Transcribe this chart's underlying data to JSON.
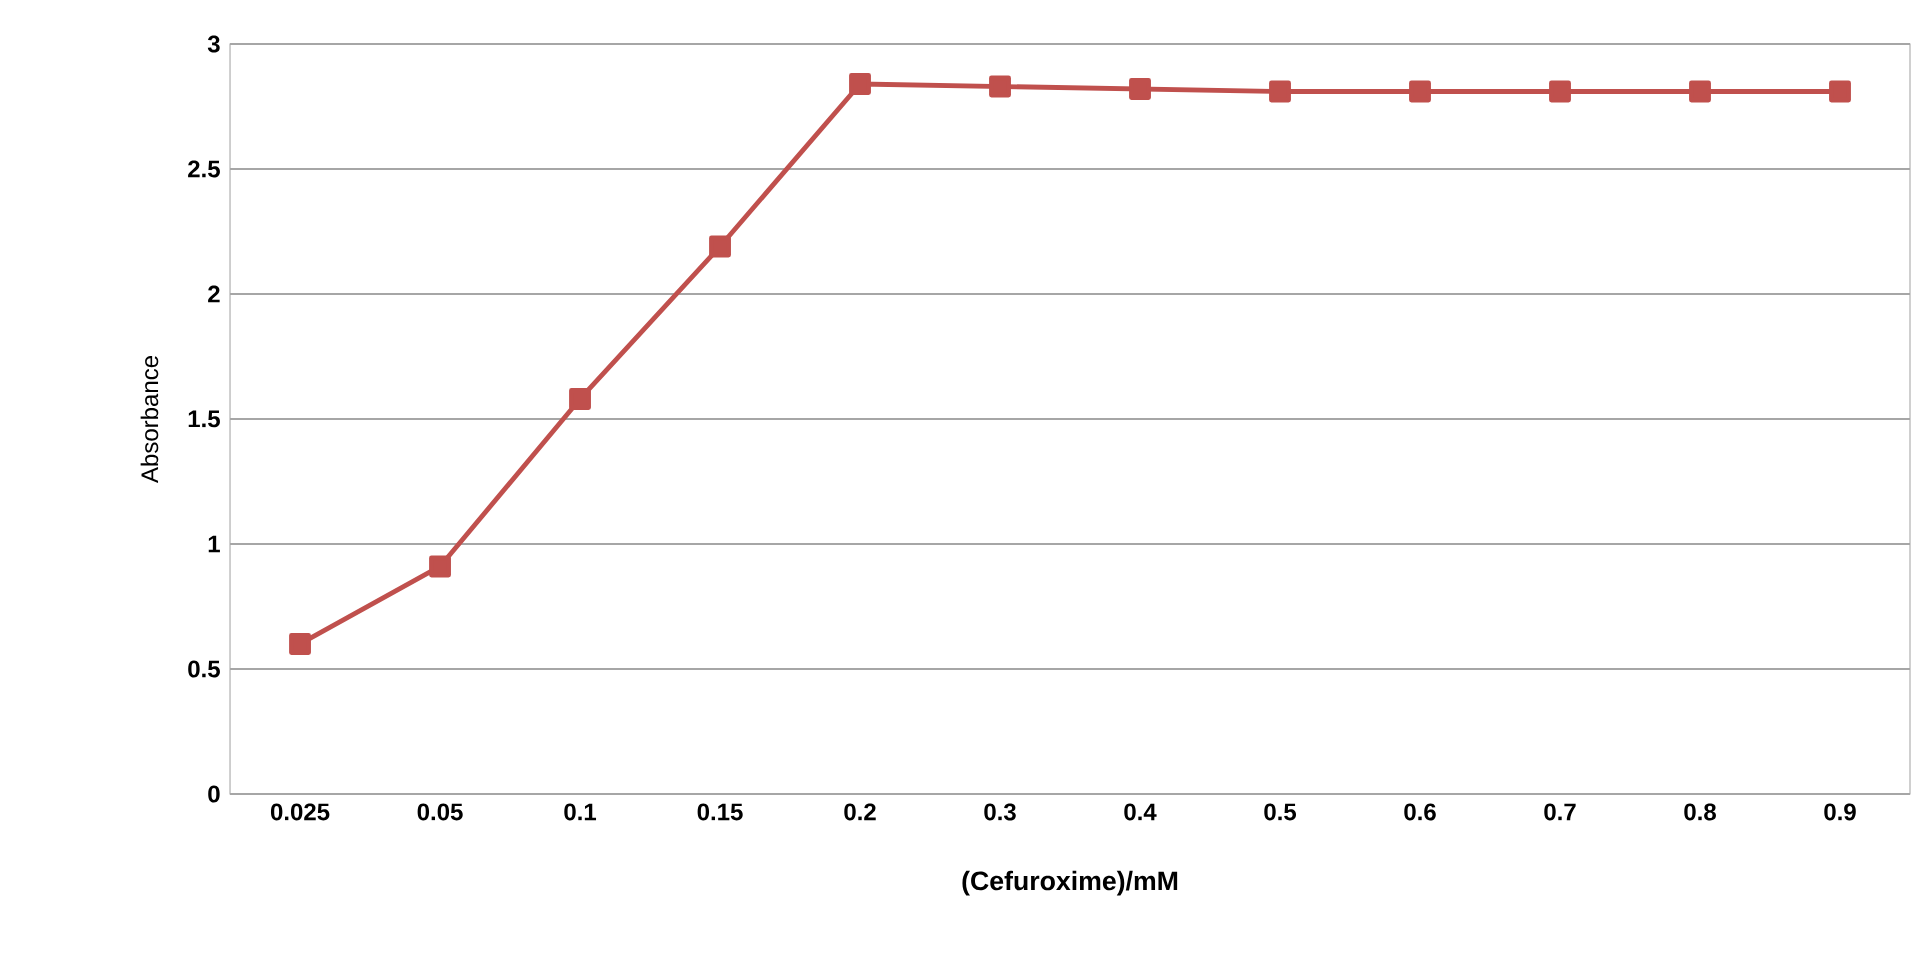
{
  "chart_data": {
    "type": "line",
    "xlabel": "(Cefuroxime)/mM",
    "ylabel": "Absorbance",
    "categories": [
      "0.025",
      "0.05",
      "0.1",
      "0.15",
      "0.2",
      "0.3",
      "0.4",
      "0.5",
      "0.6",
      "0.7",
      "0.8",
      "0.9"
    ],
    "series": [
      {
        "color": "#c0504d",
        "values": [
          0.6,
          0.91,
          1.58,
          2.19,
          2.84,
          2.83,
          2.82,
          2.81,
          2.81,
          2.81,
          2.81,
          2.81
        ]
      }
    ],
    "ylim": [
      0,
      3
    ],
    "yticks": [
      0,
      0.5,
      1,
      1.5,
      2,
      2.5,
      3
    ],
    "grid": "y",
    "marker": "square",
    "line_style": "solid"
  }
}
